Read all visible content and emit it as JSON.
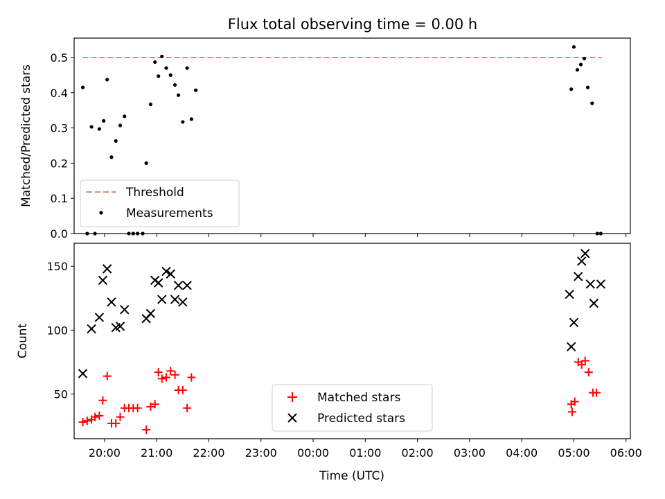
{
  "figure": {
    "title": "Flux total observing time = 0.00 h",
    "xlabel": "Time (UTC)"
  },
  "chart_data": [
    {
      "type": "scatter",
      "panel": "top",
      "ylabel": "Matched/Predicted stars",
      "ylim": [
        0,
        0.555
      ],
      "yticks": [
        0.0,
        0.1,
        0.2,
        0.3,
        0.4,
        0.5
      ],
      "ytick_labels": [
        "0.0",
        "0.1",
        "0.2",
        "0.3",
        "0.4",
        "0.5"
      ],
      "xlim": [
        "19:25",
        "06:05"
      ],
      "xticks": [
        "20:00",
        "21:00",
        "22:00",
        "23:00",
        "00:00",
        "01:00",
        "02:00",
        "03:00",
        "04:00",
        "05:00",
        "06:00"
      ],
      "legend_position": "lower left",
      "series": [
        {
          "name": "Threshold",
          "kind": "line",
          "style": "dashed",
          "color": "#f08080",
          "x": [
            "19:35",
            "05:32"
          ],
          "y": [
            0.5,
            0.5
          ]
        },
        {
          "name": "Measurements",
          "kind": "scatter",
          "marker": "dot",
          "color": "#000000",
          "x": [
            "19:35",
            "19:40",
            "19:45",
            "19:49",
            "19:54",
            "19:59",
            "20:03",
            "20:08",
            "20:13",
            "20:18",
            "20:23",
            "20:28",
            "20:33",
            "20:38",
            "20:44",
            "20:48",
            "20:53",
            "20:58",
            "21:02",
            "21:06",
            "21:11",
            "21:16",
            "21:21",
            "21:25",
            "21:30",
            "21:35",
            "21:40",
            "21:45",
            "04:57",
            "05:00",
            "05:04",
            "05:08",
            "05:12",
            "05:16",
            "05:21",
            "05:27",
            "05:31"
          ],
          "y": [
            0.415,
            0.0,
            0.303,
            0.0,
            0.297,
            0.32,
            0.437,
            0.217,
            0.263,
            0.307,
            0.333,
            0.0,
            0.0,
            0.0,
            0.0,
            0.2,
            0.367,
            0.487,
            0.447,
            0.503,
            0.47,
            0.45,
            0.422,
            0.393,
            0.317,
            0.47,
            0.325,
            0.407,
            0.41,
            0.53,
            0.465,
            0.48,
            0.497,
            0.415,
            0.37,
            0.0,
            0.0
          ]
        }
      ]
    },
    {
      "type": "scatter",
      "panel": "bottom",
      "ylabel": "Count",
      "ylim": [
        15,
        168
      ],
      "yticks": [
        50,
        100,
        150
      ],
      "ytick_labels": [
        "50",
        "100",
        "150"
      ],
      "xlim": [
        "19:25",
        "06:05"
      ],
      "xticks": [
        "20:00",
        "21:00",
        "22:00",
        "23:00",
        "00:00",
        "01:00",
        "02:00",
        "03:00",
        "04:00",
        "05:00",
        "06:00"
      ],
      "xtick_labels": [
        "20:00",
        "21:00",
        "22:00",
        "23:00",
        "00:00",
        "01:00",
        "02:00",
        "03:00",
        "04:00",
        "05:00",
        "06:00"
      ],
      "legend_position": "lower center",
      "series": [
        {
          "name": "Matched stars",
          "marker": "plus",
          "color": "#ff0000",
          "x": [
            "19:35",
            "19:40",
            "19:45",
            "19:49",
            "19:54",
            "19:58",
            "20:03",
            "20:08",
            "20:13",
            "20:18",
            "20:23",
            "20:28",
            "20:33",
            "20:38",
            "20:48",
            "20:53",
            "20:58",
            "21:02",
            "21:06",
            "21:11",
            "21:16",
            "21:21",
            "21:25",
            "21:30",
            "21:35",
            "21:40",
            "21:45",
            "04:57",
            "04:58",
            "05:01",
            "05:05",
            "05:09",
            "05:13",
            "05:17",
            "05:22",
            "05:26",
            "05:32"
          ],
          "y": [
            28,
            29,
            30,
            32,
            33,
            45,
            64,
            27,
            27,
            32,
            39,
            39,
            39,
            39,
            22,
            40,
            42,
            67,
            62,
            63,
            68,
            65,
            53,
            53,
            39,
            63,
            null,
            42,
            36,
            44,
            75,
            73,
            76,
            67,
            51,
            51,
            null
          ],
          "labels_note": ""
        },
        {
          "name": "Predicted stars",
          "marker": "x",
          "color": "#000000",
          "x": [
            "19:35",
            "19:45",
            "19:54",
            "19:58",
            "20:03",
            "20:08",
            "20:13",
            "20:18",
            "20:23",
            "20:48",
            "20:53",
            "20:58",
            "21:02",
            "21:06",
            "21:11",
            "21:16",
            "21:21",
            "21:25",
            "21:30",
            "21:35",
            "21:40",
            "04:55",
            "04:57",
            "05:00",
            "05:05",
            "05:09",
            "05:13",
            "05:19",
            "05:23",
            "05:31"
          ],
          "y": [
            66,
            101,
            110,
            139,
            148,
            122,
            102,
            103,
            116,
            109,
            113,
            139,
            137,
            124,
            146,
            144,
            124,
            135,
            122,
            135,
            null,
            128,
            87,
            106,
            142,
            154,
            160,
            136,
            121,
            136
          ]
        }
      ]
    }
  ]
}
